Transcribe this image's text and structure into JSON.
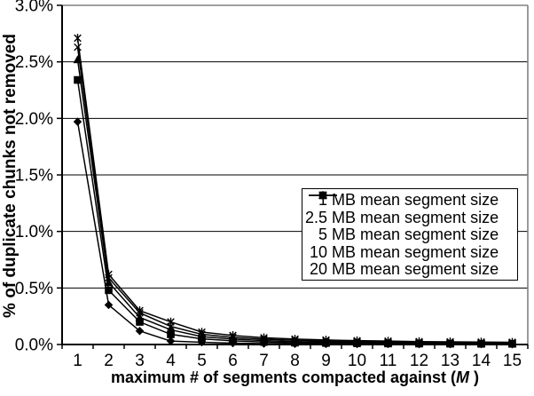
{
  "chart_data": {
    "type": "line",
    "title": "",
    "xlabel_prefix": "maximum # of segments compacted against (",
    "xlabel_italic": "M",
    "xlabel_suffix": " )",
    "ylabel": "% of duplicate chunks not removed",
    "categories": [
      "1",
      "2",
      "3",
      "4",
      "5",
      "6",
      "7",
      "8",
      "9",
      "10",
      "11",
      "12",
      "13",
      "14",
      "15"
    ],
    "y_tick_labels": [
      "0.0%",
      "0.5%",
      "1.0%",
      "1.5%",
      "2.0%",
      "2.5%",
      "3.0%"
    ],
    "ylim": [
      0,
      3
    ],
    "grid": "horizontal",
    "legend_position": "middle-right-box",
    "series": [
      {
        "name": "1 MB mean segment size",
        "marker": "diamond",
        "values": [
          1.97,
          0.35,
          0.12,
          0.03,
          0.02,
          0.012,
          0.008,
          0.006,
          0.005,
          0.004,
          0.004,
          0.003,
          0.003,
          0.003,
          0.002
        ]
      },
      {
        "name": "2.5 MB mean segment size",
        "marker": "square",
        "values": [
          2.34,
          0.48,
          0.2,
          0.09,
          0.05,
          0.032,
          0.022,
          0.016,
          0.013,
          0.011,
          0.009,
          0.008,
          0.007,
          0.006,
          0.006
        ]
      },
      {
        "name": "5 MB mean segment size",
        "marker": "triangle",
        "values": [
          2.52,
          0.55,
          0.24,
          0.13,
          0.07,
          0.048,
          0.034,
          0.026,
          0.021,
          0.018,
          0.015,
          0.013,
          0.012,
          0.011,
          0.01
        ]
      },
      {
        "name": "10 MB mean segment size",
        "marker": "x",
        "values": [
          2.63,
          0.59,
          0.28,
          0.16,
          0.09,
          0.063,
          0.047,
          0.037,
          0.03,
          0.025,
          0.022,
          0.019,
          0.017,
          0.016,
          0.015
        ]
      },
      {
        "name": "20 MB mean segment size",
        "marker": "star",
        "values": [
          2.71,
          0.62,
          0.3,
          0.2,
          0.11,
          0.08,
          0.06,
          0.048,
          0.04,
          0.034,
          0.03,
          0.026,
          0.024,
          0.022,
          0.02
        ]
      }
    ],
    "colors": {
      "series": "#000000",
      "plot_border": "#808080",
      "grid": "#000000",
      "background": "#ffffff"
    }
  }
}
